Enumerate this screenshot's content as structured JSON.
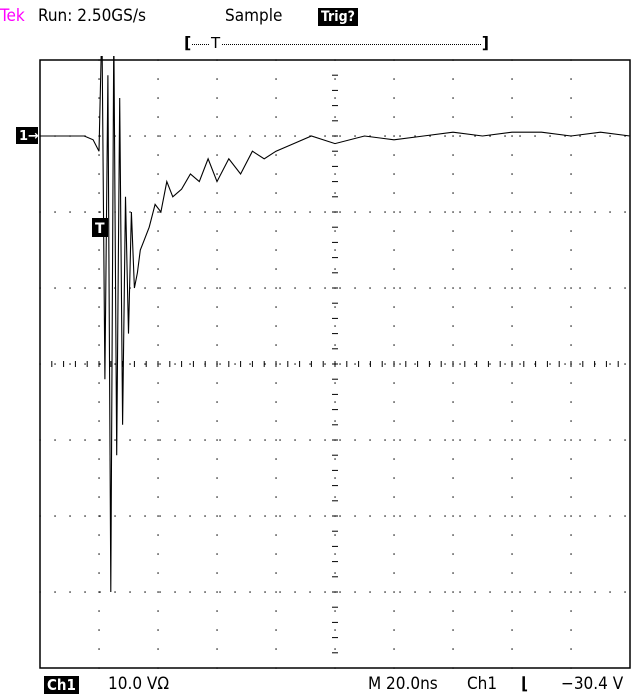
{
  "header": {
    "brand": "Tek",
    "run_status": "Run: 2.50GS/s",
    "acq_mode": "Sample",
    "trig_status": "Trig?"
  },
  "record_bar": {
    "left": "[",
    "marker": "T",
    "right": "]"
  },
  "markers": {
    "ch1_ground": "1→",
    "trigger_point": "T"
  },
  "footer": {
    "channel": "Ch1",
    "volts_per_div": "10.0 VΩ",
    "timebase": "M 20.0ns",
    "trigger_source": "Ch1",
    "trigger_slope": "⌊",
    "trigger_level": "−30.4 V"
  },
  "colors": {
    "brand": "#ff00ff",
    "trace": "#000000",
    "grid": "#000000",
    "background": "#ffffff"
  },
  "chart_data": {
    "type": "line",
    "title": "",
    "xlabel": "",
    "ylabel": "",
    "grid": true,
    "divisions": {
      "x": 10,
      "y": 8
    },
    "units": {
      "x": "ns",
      "y": "V"
    },
    "xlim": [
      -20,
      180
    ],
    "ylim": [
      -40,
      40
    ],
    "series": [
      {
        "x": [
          -20,
          -15,
          -10,
          -5,
          -2,
          0,
          1,
          2,
          3,
          4,
          5,
          6,
          7,
          8,
          9,
          10,
          11,
          12,
          13,
          14,
          15,
          17,
          19,
          21,
          23,
          25,
          28,
          31,
          34,
          37,
          40,
          44,
          48,
          52,
          56,
          60,
          66,
          72,
          80,
          90,
          100,
          110,
          120,
          130,
          140,
          150,
          160,
          170,
          180
        ],
        "y": [
          30,
          30,
          30,
          30,
          29.5,
          28,
          45,
          -2,
          38,
          -30,
          44,
          -12,
          35,
          -8,
          22,
          4,
          20,
          10,
          12,
          15,
          16,
          18,
          21,
          20,
          24,
          22,
          23,
          25,
          24,
          27,
          24,
          27,
          25,
          28,
          27,
          28,
          29,
          30,
          29,
          30,
          29.5,
          30,
          30.5,
          30,
          30.5,
          30.5,
          30,
          30.5,
          30
        ]
      }
    ]
  }
}
